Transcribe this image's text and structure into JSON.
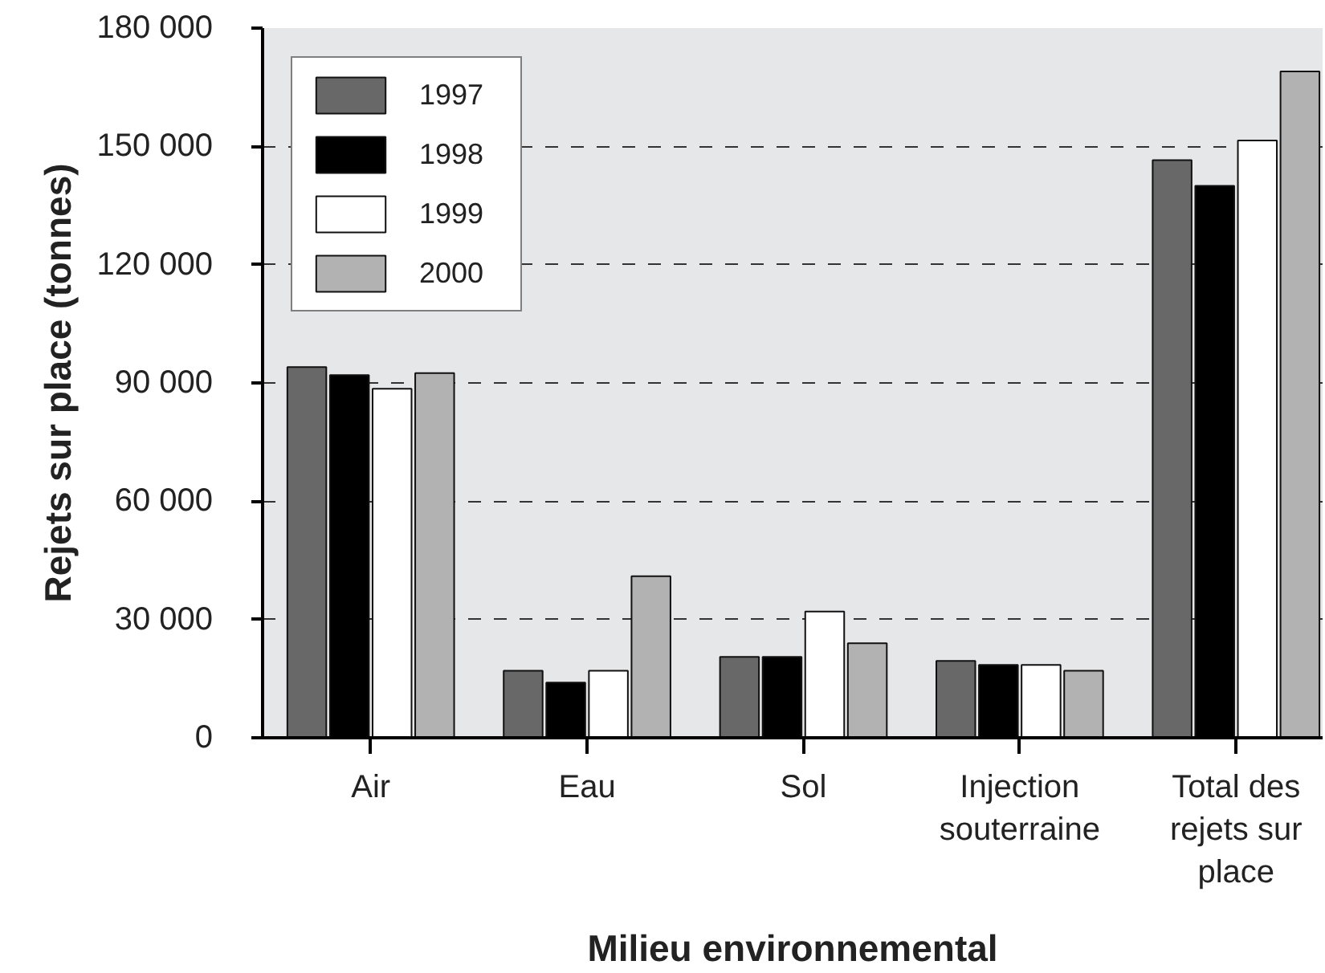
{
  "chart_data": {
    "type": "bar",
    "xlabel": "Milieu environnemental",
    "ylabel": "Rejets sur place (tonnes)",
    "categories": [
      "Air",
      "Eau",
      "Sol",
      "Injection souterraine",
      "Total des rejets sur place"
    ],
    "series": [
      {
        "name": "1997",
        "color": "#686868",
        "values": [
          94000,
          17000,
          20500,
          19500,
          146500
        ]
      },
      {
        "name": "1998",
        "color": "#000000",
        "values": [
          92000,
          14000,
          20500,
          18500,
          140000
        ]
      },
      {
        "name": "1999",
        "color": "#ffffff",
        "values": [
          88500,
          17000,
          32000,
          18500,
          151500
        ]
      },
      {
        "name": "2000",
        "color": "#b2b2b2",
        "values": [
          92500,
          41000,
          24000,
          17000,
          169000
        ]
      }
    ],
    "ylim": [
      0,
      180000
    ],
    "yticks": [
      0,
      {
        "value": 30000,
        "label": "30 000"
      },
      {
        "value": 60000,
        "label": "60 000"
      },
      {
        "value": 90000,
        "label": "90 000"
      },
      {
        "value": 120000,
        "label": "120 000"
      },
      {
        "value": 150000,
        "label": "150 000"
      },
      {
        "value": 180000,
        "label": "180 000"
      }
    ],
    "grid": "y",
    "legend": "top left"
  }
}
